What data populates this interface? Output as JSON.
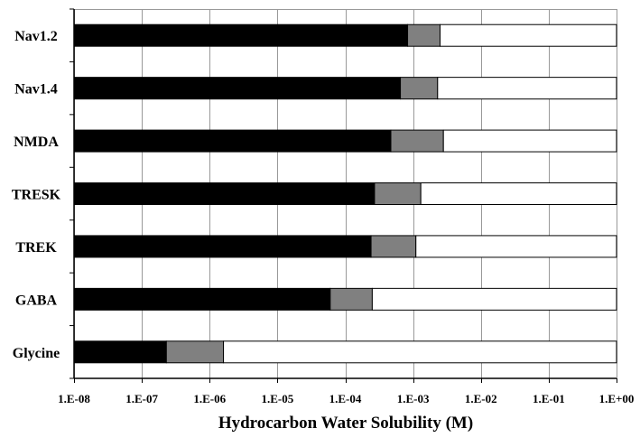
{
  "chart_data": {
    "type": "bar",
    "orientation": "horizontal",
    "stacked": true,
    "log_x": true,
    "xlabel": "Hydrocarbon Water Solubility (M)",
    "ylabel": "",
    "xlim": [
      1e-08,
      1
    ],
    "x_tick_labels": [
      "1.E-08",
      "1.E-07",
      "1.E-06",
      "1.E-05",
      "1.E-04",
      "1.E-03",
      "1.E-02",
      "1.E-01",
      "1.E+00"
    ],
    "x_tick_values": [
      1e-08,
      1e-07,
      1e-06,
      1e-05,
      0.0001,
      0.001,
      0.01,
      0.1,
      1
    ],
    "grid": true,
    "categories": [
      "Nav1.2",
      "Nav1.4",
      "NMDA",
      "TRESK",
      "TREK",
      "GABA",
      "Glycine"
    ],
    "series": [
      {
        "color": "#000000",
        "start": [
          1e-08,
          1e-08,
          1e-08,
          1e-08,
          1e-08,
          1e-08,
          1e-08
        ],
        "end": [
          0.00083,
          0.00065,
          0.00047,
          0.00027,
          0.00024,
          6e-05,
          2.3e-07
        ]
      },
      {
        "color": "#808080",
        "start": [
          0.00083,
          0.00065,
          0.00047,
          0.00027,
          0.00024,
          6e-05,
          2.3e-07
        ],
        "end": [
          0.0025,
          0.0023,
          0.0028,
          0.0013,
          0.0011,
          0.00025,
          1.6e-06
        ]
      },
      {
        "color": "#ffffff",
        "start": [
          0.0025,
          0.0023,
          0.0028,
          0.0013,
          0.0011,
          0.00025,
          1.6e-06
        ],
        "end": [
          1,
          1,
          1,
          1,
          1,
          1,
          1
        ]
      }
    ],
    "colors": {
      "gridline": "#999999",
      "bar_outline": "#000000",
      "axis": "#000000"
    }
  }
}
